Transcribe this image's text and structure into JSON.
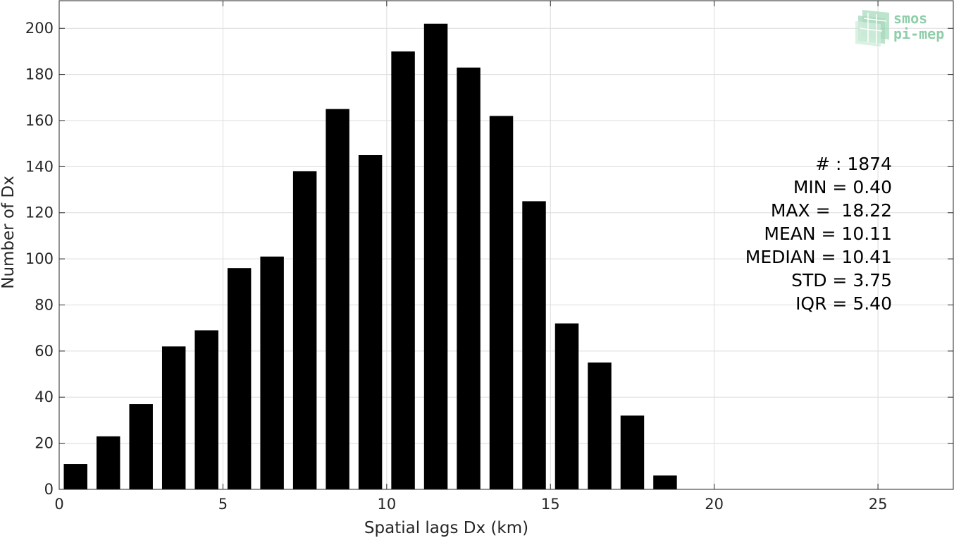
{
  "chart_data": {
    "type": "bar",
    "bin_centers": [
      0.5,
      1.5,
      2.5,
      3.5,
      4.5,
      5.5,
      6.5,
      7.5,
      8.5,
      9.5,
      10.5,
      11.5,
      12.5,
      13.5,
      14.5,
      15.5,
      16.5,
      17.5,
      18.5
    ],
    "values": [
      11,
      23,
      37,
      62,
      69,
      96,
      101,
      138,
      165,
      145,
      190,
      202,
      183,
      162,
      125,
      72,
      55,
      32,
      6
    ],
    "bar_color": "#000000",
    "xlabel": "Spatial lags Dx (km)",
    "ylabel": "Number of Dx",
    "xlim": [
      0,
      27.3
    ],
    "ylim": [
      0,
      212
    ],
    "xticks": [
      0,
      5,
      10,
      15,
      20,
      25
    ],
    "yticks": [
      0,
      20,
      40,
      60,
      80,
      100,
      120,
      140,
      160,
      180,
      200
    ],
    "grid": true,
    "stats": [
      "# : 1874",
      "MIN = 0.40",
      "MAX =  18.22",
      "MEAN = 10.11",
      "MEDIAN = 10.41",
      "STD = 3.75",
      "IQR = 5.40"
    ]
  },
  "logo": {
    "line1": "smos",
    "line2": "pi-mep",
    "color": "#8fceaa"
  }
}
